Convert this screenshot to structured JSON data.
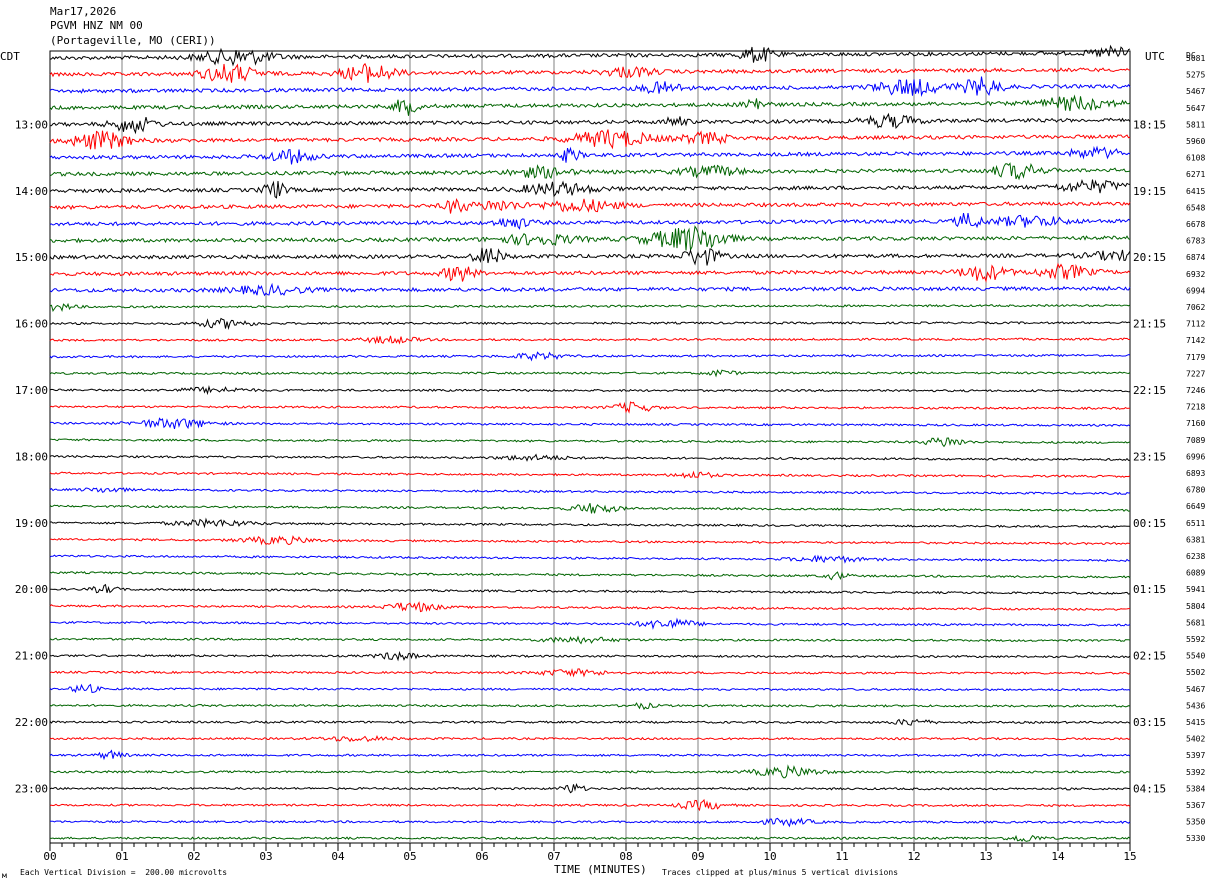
{
  "header": {
    "date": "Mar17,2026",
    "station": "PGVM HNZ NM 00",
    "location": "(Portageville, MO (CERI))"
  },
  "left_timezone": "CDT",
  "right_timezone": "UTC",
  "dc_label": "DC",
  "footer": {
    "scale_note": "Each Vertical Division =  200.00 microvolts",
    "xlabel": "TIME (MINUTES)",
    "clip_note": "Traces clipped at plus/minus 5 vertical divisions",
    "corner_mark": "м"
  },
  "colors": {
    "trace_cycle": [
      "#000000",
      "#ff0000",
      "#0000ff",
      "#006400"
    ],
    "grid": "#808080"
  },
  "chart_data": {
    "type": "line",
    "title": "PGVM HNZ NM 00",
    "xlabel": "TIME (MINUTES)",
    "xlim": [
      0,
      15
    ],
    "x_ticks": [
      "00",
      "01",
      "02",
      "03",
      "04",
      "05",
      "06",
      "07",
      "08",
      "09",
      "10",
      "11",
      "12",
      "13",
      "14",
      "15"
    ],
    "rows_per_hour": 4,
    "left_hour_labels": [
      "13:00",
      "14:00",
      "15:00",
      "16:00",
      "17:00",
      "18:00",
      "19:00",
      "20:00",
      "21:00",
      "22:00",
      "23:00"
    ],
    "right_hour_labels": [
      "18:15",
      "19:15",
      "20:15",
      "21:15",
      "22:15",
      "23:15",
      "00:15",
      "01:15",
      "02:15",
      "03:15",
      "04:15"
    ],
    "hour_label_first_row": 4,
    "dc_offsets": [
      5081,
      5275,
      5467,
      5647,
      5811,
      5960,
      6108,
      6271,
      6415,
      6548,
      6678,
      6783,
      6874,
      6932,
      6994,
      7062,
      7112,
      7142,
      7179,
      7227,
      7246,
      7218,
      7160,
      7089,
      6996,
      6893,
      6780,
      6649,
      6511,
      6381,
      6238,
      6089,
      5941,
      5804,
      5681,
      5592,
      5540,
      5502,
      5467,
      5436,
      5415,
      5402,
      5397,
      5392,
      5384,
      5367,
      5350,
      5330
    ]
  }
}
